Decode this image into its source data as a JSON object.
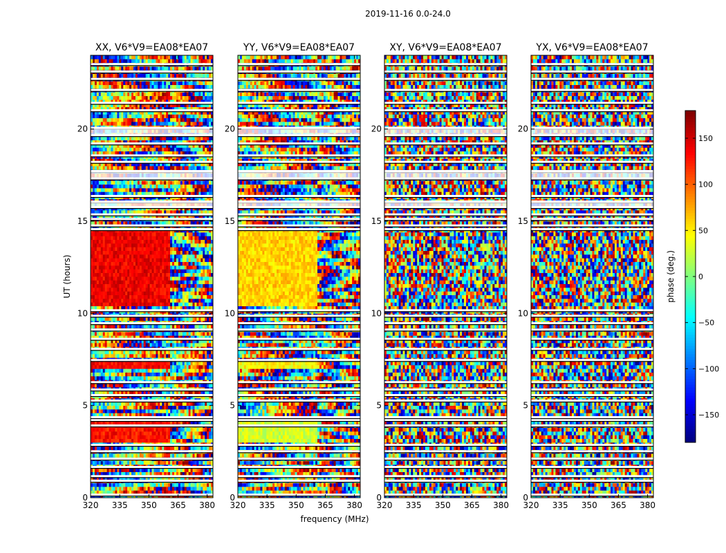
{
  "chart_data": {
    "type": "heatmap",
    "suptitle": "2019-11-16 0.0-24.0",
    "panels": [
      {
        "title": "XX, V6*V9=EA08*EA07",
        "pol": "XX"
      },
      {
        "title": "YY, V6*V9=EA08*EA07",
        "pol": "YY"
      },
      {
        "title": "XY, V6*V9=EA08*EA07",
        "pol": "XY"
      },
      {
        "title": "YX, V6*V9=EA08*EA07",
        "pol": "YX"
      }
    ],
    "xlabel": "frequency (MHz)",
    "ylabel": "UT (hours)",
    "xlim": [
      320,
      383
    ],
    "ylim": [
      0,
      24
    ],
    "xticks": [
      320,
      335,
      350,
      365,
      380
    ],
    "yticks": [
      0,
      5,
      10,
      15,
      20
    ],
    "colorbar": {
      "label": "phase (deg.)",
      "range": [
        -180,
        180
      ],
      "ticks": [
        -150,
        -100,
        -50,
        0,
        50,
        100,
        150
      ],
      "colormap": "jet"
    },
    "band_edge_mhz": 361,
    "flagged_ut_hours": [
      0.15,
      0.9,
      1.15,
      1.65,
      2.1,
      2.5,
      2.85,
      3.9,
      4.2,
      4.35,
      5.25,
      5.55,
      5.85,
      6.25,
      7.45,
      8.05,
      8.6,
      9.1,
      9.45,
      9.85,
      10.15,
      14.55,
      14.75,
      15.1,
      15.35,
      15.75,
      16.05,
      16.35,
      17.3,
      17.7,
      18.2,
      18.55,
      19.2,
      19.65,
      20.05,
      21.0,
      21.4,
      22.1,
      22.7,
      23.1,
      23.5
    ],
    "broad_gaps_ut_hours": [
      [
        15.75,
        16.05
      ],
      [
        17.3,
        17.7
      ],
      [
        19.65,
        20.05
      ]
    ],
    "regions": [
      {
        "pol": "XX",
        "ut_range": [
          10.3,
          14.5
        ],
        "freq_range": [
          320,
          361
        ],
        "phase_deg": 140
      },
      {
        "pol": "XX",
        "ut_range": [
          3.1,
          4.1
        ],
        "freq_range": [
          320,
          361
        ],
        "phase_deg": 130
      },
      {
        "pol": "XX",
        "ut_range": [
          6.9,
          7.3
        ],
        "freq_range": [
          320,
          361
        ],
        "phase_deg": 135
      },
      {
        "pol": "YY",
        "ut_range": [
          10.3,
          14.5
        ],
        "freq_range": [
          320,
          361
        ],
        "phase_deg": 60
      },
      {
        "pol": "YY",
        "ut_range": [
          3.1,
          4.1
        ],
        "freq_range": [
          320,
          361
        ],
        "phase_deg": 30
      },
      {
        "pol": "YY",
        "ut_range": [
          6.9,
          7.3
        ],
        "freq_range": [
          320,
          361
        ],
        "phase_deg": 45
      }
    ]
  }
}
